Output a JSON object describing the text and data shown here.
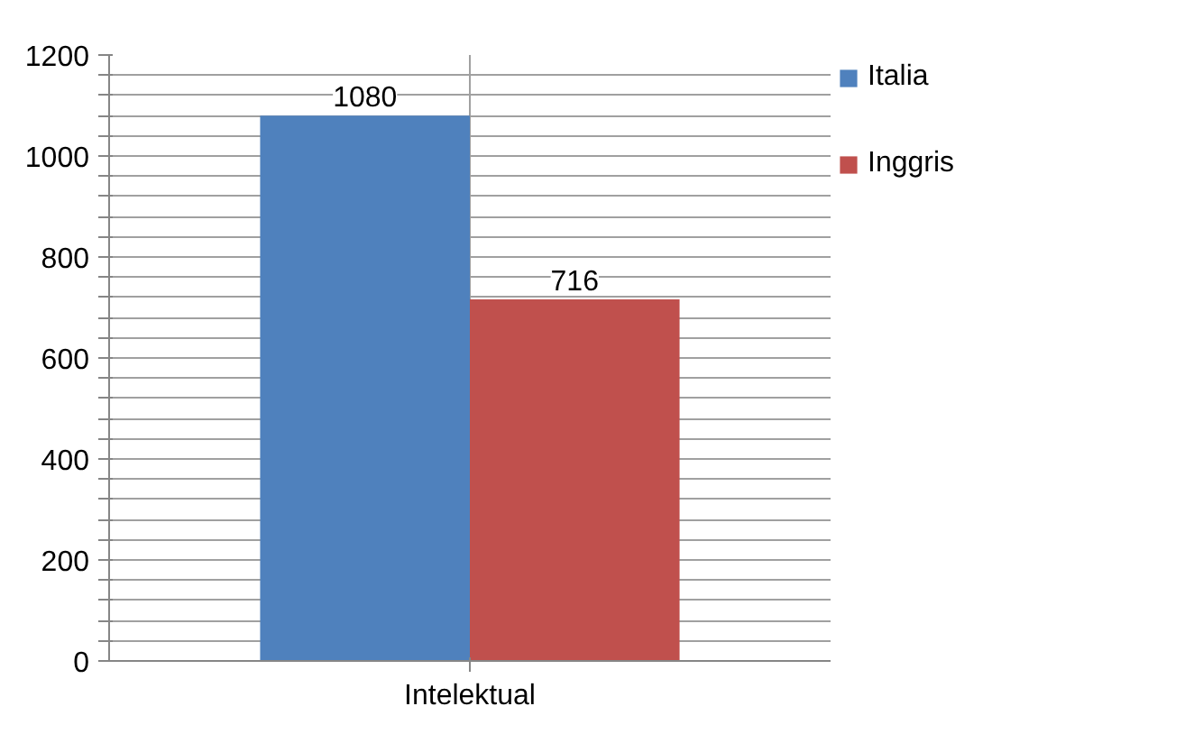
{
  "chart_data": {
    "type": "bar",
    "categories": [
      "Intelektual"
    ],
    "series": [
      {
        "name": "Italia",
        "color": "#4f81bd",
        "values": [
          1080
        ]
      },
      {
        "name": "Inggris",
        "color": "#c0504d",
        "values": [
          716
        ]
      }
    ],
    "ylim": [
      0,
      1200
    ],
    "yticks": [
      0,
      {
        "value": 40,
        "label": null
      },
      {
        "value": 80,
        "label": null
      },
      {
        "value": 120,
        "label": null
      },
      {
        "value": 160,
        "label": null
      },
      200,
      {
        "value": 240,
        "label": null
      },
      {
        "value": 280,
        "label": null
      },
      {
        "value": 320,
        "label": null
      },
      {
        "value": 360,
        "label": null
      },
      400,
      {
        "value": 440,
        "label": null
      },
      {
        "value": 480,
        "label": null
      },
      {
        "value": 520,
        "label": null
      },
      {
        "value": 560,
        "label": null
      },
      600,
      {
        "value": 640,
        "label": null
      },
      {
        "value": 680,
        "label": null
      },
      {
        "value": 720,
        "label": null
      },
      {
        "value": 760,
        "label": null
      },
      800,
      {
        "value": 840,
        "label": null
      },
      {
        "value": 880,
        "label": null
      },
      {
        "value": 920,
        "label": null
      },
      {
        "value": 960,
        "label": null
      },
      1000,
      {
        "value": 1040,
        "label": null
      },
      {
        "value": 1080,
        "label": null
      },
      {
        "value": 1120,
        "label": null
      },
      {
        "value": 1160,
        "label": null
      },
      1200
    ],
    "grid": true,
    "legend": "right",
    "data_labels": true
  }
}
